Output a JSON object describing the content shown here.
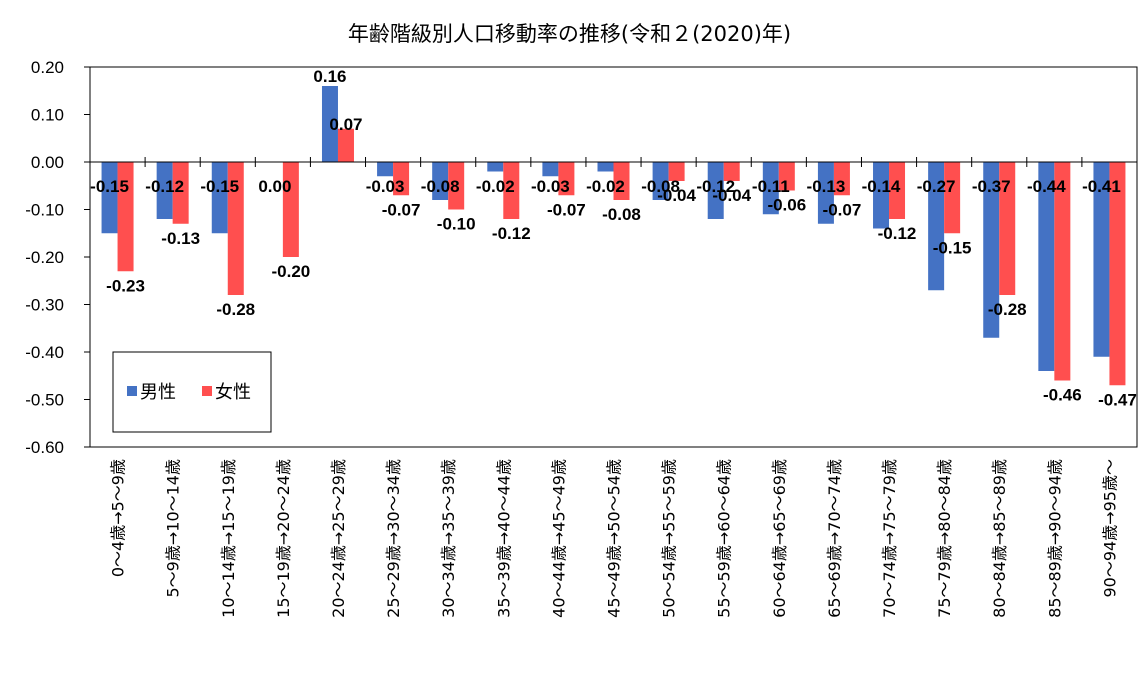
{
  "chart_data": {
    "type": "bar",
    "title": "年齢階級別人口移動率の推移(令和２(2020)年)",
    "categories": [
      "0～4歳→5～9歳",
      "5～9歳→10～14歳",
      "10～14歳→15～19歳",
      "15～19歳→20～24歳",
      "20～24歳→25～29歳",
      "25～29歳→30～34歳",
      "30～34歳→35～39歳",
      "35～39歳→40～44歳",
      "40～44歳→45～49歳",
      "45～49歳→50～54歳",
      "50～54歳→55～59歳",
      "55～59歳→60～64歳",
      "60～64歳→65～69歳",
      "65～69歳→70～74歳",
      "70～74歳→75～79歳",
      "75～79歳→80～84歳",
      "80～84歳→85～89歳",
      "85～89歳→90～94歳",
      "90～94歳→95歳～"
    ],
    "series": [
      {
        "name": "男性",
        "color": "#4472C4",
        "values": [
          -0.15,
          -0.12,
          -0.15,
          0.0,
          0.16,
          -0.03,
          -0.08,
          -0.02,
          -0.03,
          -0.02,
          -0.08,
          -0.12,
          -0.11,
          -0.13,
          -0.14,
          -0.27,
          -0.37,
          -0.44,
          -0.41
        ],
        "labels": [
          "-0.15",
          "-0.12",
          "-0.15",
          "0.00",
          "0.16",
          "-0.03",
          "-0.08",
          "-0.02",
          "-0.03",
          "-0.02",
          "-0.08",
          "-0.12",
          "-0.11",
          "-0.13",
          "-0.14",
          "-0.27",
          "-0.37",
          "-0.44",
          "-0.41"
        ]
      },
      {
        "name": "女性",
        "color": "#FF4F4F",
        "values": [
          -0.23,
          -0.13,
          -0.28,
          -0.2,
          0.07,
          -0.07,
          -0.1,
          -0.12,
          -0.07,
          -0.08,
          -0.04,
          -0.04,
          -0.06,
          -0.07,
          -0.12,
          -0.15,
          -0.28,
          -0.46,
          -0.47
        ],
        "labels": [
          "-0.23",
          "-0.13",
          "-0.28",
          "-0.20",
          "0.07",
          "-0.07",
          "-0.10",
          "-0.12",
          "-0.07",
          "-0.08",
          "-0.04",
          "-0.04",
          "-0.06",
          "-0.07",
          "-0.12",
          "-0.15",
          "-0.28",
          "-0.46",
          "-0.47"
        ]
      }
    ],
    "ylim": [
      -0.6,
      0.2
    ],
    "yticks": [
      "0.20",
      "0.10",
      "0.00",
      "-0.10",
      "-0.20",
      "-0.30",
      "-0.40",
      "-0.50",
      "-0.60"
    ],
    "ytick_values": [
      0.2,
      0.1,
      0.0,
      -0.1,
      -0.2,
      -0.3,
      -0.4,
      -0.5,
      -0.6
    ],
    "grid": false,
    "legend": "bottom-left"
  }
}
